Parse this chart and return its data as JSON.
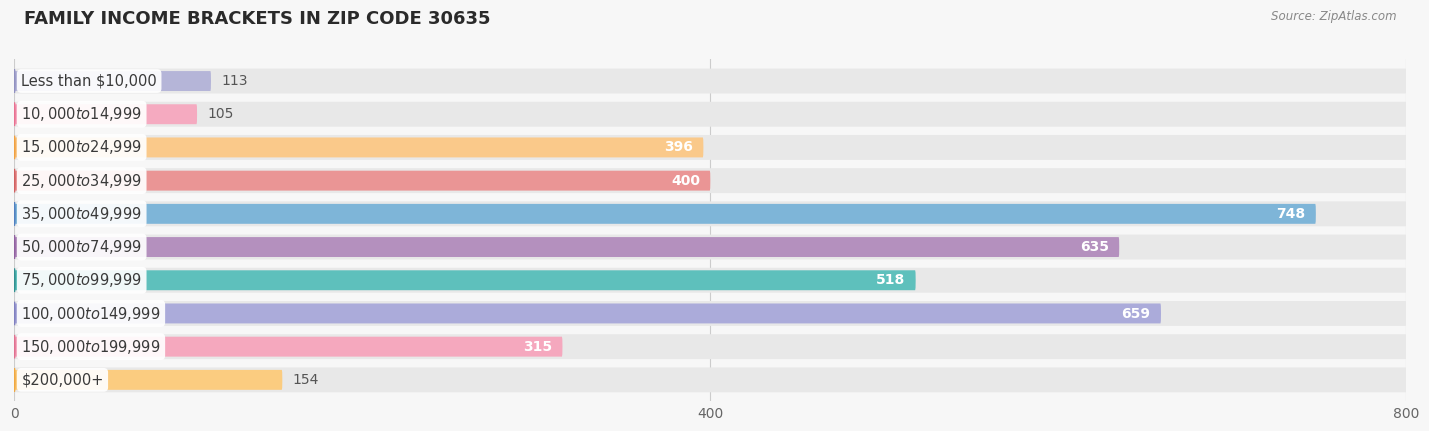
{
  "title": "FAMILY INCOME BRACKETS IN ZIP CODE 30635",
  "source": "Source: ZipAtlas.com",
  "categories": [
    "Less than $10,000",
    "$10,000 to $14,999",
    "$15,000 to $24,999",
    "$25,000 to $34,999",
    "$35,000 to $49,999",
    "$50,000 to $74,999",
    "$75,000 to $99,999",
    "$100,000 to $149,999",
    "$150,000 to $199,999",
    "$200,000+"
  ],
  "values": [
    113,
    105,
    396,
    400,
    748,
    635,
    518,
    659,
    315,
    154
  ],
  "bar_colors": [
    "#b5b5d8",
    "#f5aac0",
    "#fac98a",
    "#ea9595",
    "#7eb5d8",
    "#b490be",
    "#5ec0bc",
    "#ababda",
    "#f5a8be",
    "#fbcc80"
  ],
  "dot_colors": [
    "#9090c0",
    "#e87090",
    "#f0a040",
    "#d06060",
    "#5080c0",
    "#9060a0",
    "#309090",
    "#8080c0",
    "#e07090",
    "#f0a840"
  ],
  "xlim": [
    0,
    800
  ],
  "xticks": [
    0,
    400,
    800
  ],
  "background_color": "#f7f7f7",
  "bar_background_color": "#e8e8e8",
  "title_fontsize": 13,
  "label_fontsize": 10.5,
  "value_fontsize": 10
}
